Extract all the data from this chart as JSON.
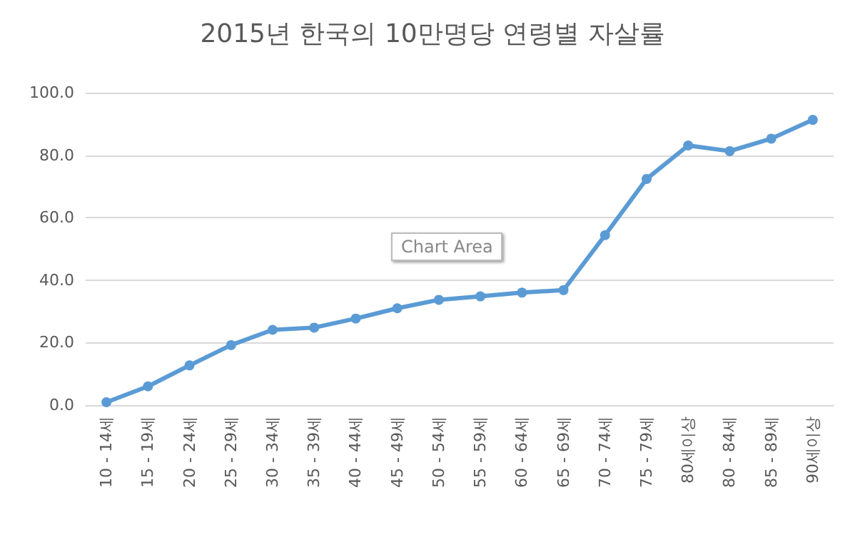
{
  "chart_data": {
    "type": "line",
    "title": "2015년 한국의 10만명당 연령별 자살률",
    "categories": [
      "10 - 14세",
      "15 - 19세",
      "20 - 24세",
      "25 - 29세",
      "30 - 34세",
      "35 - 39세",
      "40 - 44세",
      "45 - 49세",
      "50 - 54세",
      "55 - 59세",
      "60 - 64세",
      "65 - 69세",
      "70 - 74세",
      "75 - 79세",
      "80세이상",
      "80 - 84세",
      "85 - 89세",
      "90세이상"
    ],
    "series": [
      {
        "color": "#5b9bd5",
        "values": [
          0.9,
          6.0,
          12.7,
          19.2,
          24.1,
          24.8,
          27.7,
          31.0,
          33.7,
          34.8,
          36.0,
          36.8,
          54.4,
          72.4,
          83.1,
          81.3,
          85.3,
          91.3
        ]
      }
    ],
    "ylim": [
      0,
      100
    ],
    "yticks": [
      {
        "value": 0,
        "label": "0.0"
      },
      {
        "value": 20,
        "label": "20.0"
      },
      {
        "value": 40,
        "label": "40.0"
      },
      {
        "value": 60,
        "label": "60.0"
      },
      {
        "value": 80,
        "label": "80.0"
      },
      {
        "value": 100,
        "label": "100.0"
      }
    ],
    "grid": "y",
    "marker": "circle",
    "line_style": "solid",
    "annotations": [
      "Chart Area"
    ]
  }
}
